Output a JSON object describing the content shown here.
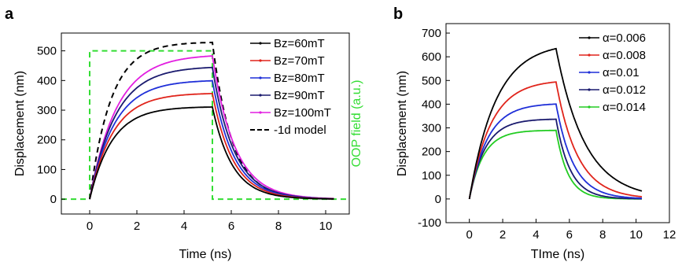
{
  "colors": {
    "black": "#000000",
    "red": "#e0241b",
    "blue": "#1f2fd8",
    "navy": "#1a1a6e",
    "magenta": "#e21ee0",
    "green": "#22cc22",
    "oop": "#33dd33"
  },
  "chart_data": [
    {
      "type": "line",
      "panel_label": "a",
      "title": "",
      "xlabel": "Time (ns)",
      "ylabel": "Displacement (nm)",
      "y2label": "OOP field (a.u.)",
      "xlim": [
        -1.2,
        11
      ],
      "ylim": [
        -50,
        560
      ],
      "xticks": [
        "0",
        "2",
        "4",
        "6",
        "8",
        "10"
      ],
      "yticks": [
        "0",
        "100",
        "200",
        "300",
        "400",
        "500"
      ],
      "grid": false,
      "legend_position": "top-right",
      "pulse": {
        "start": 0,
        "end": 5.2,
        "low": 0,
        "high": 500
      },
      "series": [
        {
          "name": "Bz=60mT",
          "color": "black",
          "style": "solid",
          "plateau": 312,
          "tau_rise": 0.95,
          "tau_decay": 0.85,
          "marker": true
        },
        {
          "name": "Bz=70mT",
          "color": "red",
          "style": "solid",
          "plateau": 358,
          "tau_rise": 1.0,
          "tau_decay": 0.88,
          "marker": true
        },
        {
          "name": "Bz=80mT",
          "color": "blue",
          "style": "solid",
          "plateau": 402,
          "tau_rise": 1.05,
          "tau_decay": 0.9,
          "marker": true
        },
        {
          "name": "Bz=90mT",
          "color": "navy",
          "style": "solid",
          "plateau": 448,
          "tau_rise": 1.1,
          "tau_decay": 0.92,
          "marker": true
        },
        {
          "name": "Bz=100mT",
          "color": "magenta",
          "style": "solid",
          "plateau": 488,
          "tau_rise": 1.15,
          "tau_decay": 0.95,
          "marker": true
        },
        {
          "name": "-1d model",
          "color": "black",
          "style": "dashed",
          "plateau": 530,
          "tau_rise": 0.9,
          "tau_decay": 0.85,
          "marker": false
        }
      ]
    },
    {
      "type": "line",
      "panel_label": "b",
      "title": "",
      "xlabel": "TIme (ns)",
      "ylabel": "Displacement (nm)",
      "xlim": [
        -1.4,
        12
      ],
      "ylim": [
        -100,
        740
      ],
      "xticks": [
        "0",
        "2",
        "4",
        "6",
        "8",
        "10",
        "12"
      ],
      "yticks": [
        "-100",
        "0",
        "100",
        "200",
        "300",
        "400",
        "500",
        "600",
        "700"
      ],
      "grid": false,
      "legend_position": "top-right",
      "pulse_end": 5.2,
      "series": [
        {
          "name": "α=0.006",
          "color": "black",
          "plateau": 660,
          "tau_rise": 1.6,
          "tau_decay": 1.75,
          "marker": true
        },
        {
          "name": "α=0.008",
          "color": "red",
          "plateau": 503,
          "tau_rise": 1.3,
          "tau_decay": 1.3,
          "marker": true
        },
        {
          "name": "α=0.01",
          "color": "blue",
          "plateau": 404,
          "tau_rise": 1.1,
          "tau_decay": 1.05,
          "marker": true
        },
        {
          "name": "α=0.012",
          "color": "navy",
          "plateau": 338,
          "tau_rise": 0.95,
          "tau_decay": 0.85,
          "marker": true
        },
        {
          "name": "α=0.014",
          "color": "green",
          "plateau": 290,
          "tau_rise": 0.85,
          "tau_decay": 0.72,
          "marker": true
        }
      ]
    }
  ]
}
